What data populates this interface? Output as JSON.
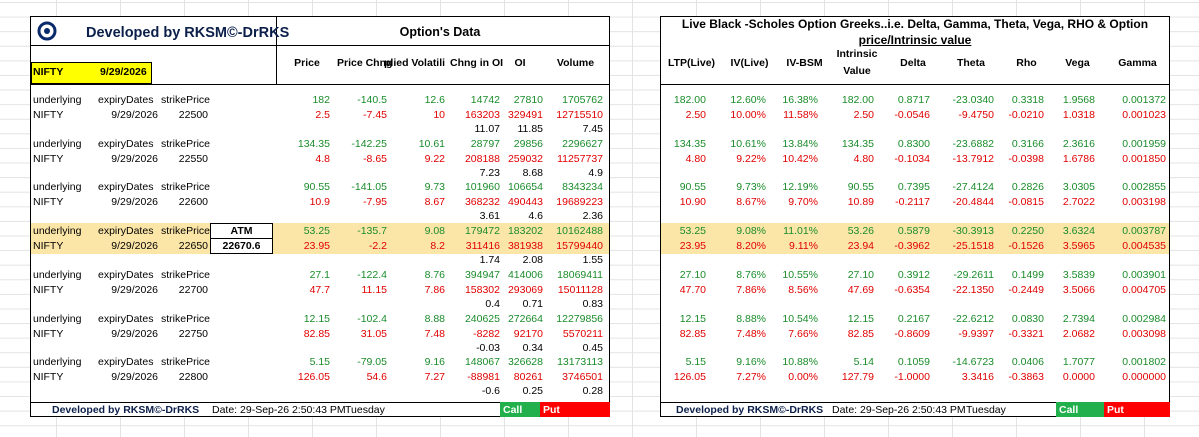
{
  "title": "Developed by RKSM©-DrRKS",
  "options_title": "Option's Data",
  "greeks_title_line1": "Live Black -Scholes Option Greeks..i.e. Delta, Gamma, Theta, Vega, RHO & Option",
  "greeks_title_line2": "price/Intrinsic value",
  "symbol": "NIFTY",
  "expiry": "9/29/2026",
  "left_headers": [
    "Price",
    "Price Chng",
    "plied Volatili",
    "Chng in OI",
    "OI",
    "Volume"
  ],
  "right_headers": [
    "LTP(Live)",
    "IV(Live)",
    "IV-BSM",
    "Intrinsic",
    "Value",
    "Delta",
    "Theta",
    "Rho",
    "Vega",
    "Gamma"
  ],
  "row_labels": {
    "underlying": "underlying",
    "expiryDates": "expiryDates",
    "strikePrice": "strikePrice"
  },
  "atm": {
    "label": "ATM",
    "value": "22670.6"
  },
  "blocks": [
    {
      "expiry": "9/29/2026",
      "strike": "22500",
      "call": {
        "price": "182",
        "chng": "-140.5",
        "iv": "12.6",
        "coi": "14742",
        "oi": "27810",
        "vol": "1705762"
      },
      "put": {
        "price": "2.5",
        "chng": "-7.45",
        "iv": "10",
        "coi": "163203",
        "oi": "329491",
        "vol": "12715510"
      },
      "ratio": {
        "coi": "11.07",
        "oi": "11.85",
        "vol": "7.45"
      },
      "g_call": {
        "ltp": "182.00",
        "iv": "12.60%",
        "bsm": "16.38%",
        "intr": "182.00",
        "delta": "0.8717",
        "theta": "-23.0340",
        "rho": "0.3318",
        "vega": "1.9568",
        "gamma": "0.001372"
      },
      "g_put": {
        "ltp": "2.50",
        "iv": "10.00%",
        "bsm": "11.58%",
        "intr": "2.50",
        "delta": "-0.0546",
        "theta": "-9.4750",
        "rho": "-0.0210",
        "vega": "1.0318",
        "gamma": "0.001023"
      }
    },
    {
      "expiry": "9/29/2026",
      "strike": "22550",
      "call": {
        "price": "134.35",
        "chng": "-142.25",
        "iv": "10.61",
        "coi": "28797",
        "oi": "29856",
        "vol": "2296627"
      },
      "put": {
        "price": "4.8",
        "chng": "-8.65",
        "iv": "9.22",
        "coi": "208188",
        "oi": "259032",
        "vol": "11257737"
      },
      "ratio": {
        "coi": "7.23",
        "oi": "8.68",
        "vol": "4.9"
      },
      "g_call": {
        "ltp": "134.35",
        "iv": "10.61%",
        "bsm": "13.84%",
        "intr": "134.35",
        "delta": "0.8300",
        "theta": "-23.6882",
        "rho": "0.3166",
        "vega": "2.3616",
        "gamma": "0.001959"
      },
      "g_put": {
        "ltp": "4.80",
        "iv": "9.22%",
        "bsm": "10.42%",
        "intr": "4.80",
        "delta": "-0.1034",
        "theta": "-13.7912",
        "rho": "-0.0398",
        "vega": "1.6786",
        "gamma": "0.001850"
      }
    },
    {
      "expiry": "9/29/2026",
      "strike": "22600",
      "call": {
        "price": "90.55",
        "chng": "-141.05",
        "iv": "9.73",
        "coi": "101960",
        "oi": "106654",
        "vol": "8343234"
      },
      "put": {
        "price": "10.9",
        "chng": "-7.95",
        "iv": "8.67",
        "coi": "368232",
        "oi": "490443",
        "vol": "19689223"
      },
      "ratio": {
        "coi": "3.61",
        "oi": "4.6",
        "vol": "2.36"
      },
      "g_call": {
        "ltp": "90.55",
        "iv": "9.73%",
        "bsm": "12.19%",
        "intr": "90.55",
        "delta": "0.7395",
        "theta": "-27.4124",
        "rho": "0.2826",
        "vega": "3.0305",
        "gamma": "0.002855"
      },
      "g_put": {
        "ltp": "10.90",
        "iv": "8.67%",
        "bsm": "9.70%",
        "intr": "10.89",
        "delta": "-0.2117",
        "theta": "-20.4844",
        "rho": "-0.0815",
        "vega": "2.7022",
        "gamma": "0.003198"
      }
    },
    {
      "expiry": "9/29/2026",
      "strike": "22650",
      "call": {
        "price": "53.25",
        "chng": "-135.7",
        "iv": "9.08",
        "coi": "179472",
        "oi": "183202",
        "vol": "10162488"
      },
      "put": {
        "price": "23.95",
        "chng": "-2.2",
        "iv": "8.2",
        "coi": "311416",
        "oi": "381938",
        "vol": "15799440"
      },
      "ratio": {
        "coi": "1.74",
        "oi": "2.08",
        "vol": "1.55"
      },
      "g_call": {
        "ltp": "53.25",
        "iv": "9.08%",
        "bsm": "11.01%",
        "intr": "53.26",
        "delta": "0.5879",
        "theta": "-30.3913",
        "rho": "0.2250",
        "vega": "3.6324",
        "gamma": "0.003787"
      },
      "g_put": {
        "ltp": "23.95",
        "iv": "8.20%",
        "bsm": "9.11%",
        "intr": "23.94",
        "delta": "-0.3962",
        "theta": "-25.1518",
        "rho": "-0.1526",
        "vega": "3.5965",
        "gamma": "0.004535"
      }
    },
    {
      "expiry": "9/29/2026",
      "strike": "22700",
      "call": {
        "price": "27.1",
        "chng": "-122.4",
        "iv": "8.76",
        "coi": "394947",
        "oi": "414006",
        "vol": "18069411"
      },
      "put": {
        "price": "47.7",
        "chng": "11.15",
        "iv": "7.86",
        "coi": "158302",
        "oi": "293069",
        "vol": "15011128"
      },
      "ratio": {
        "coi": "0.4",
        "oi": "0.71",
        "vol": "0.83"
      },
      "g_call": {
        "ltp": "27.10",
        "iv": "8.76%",
        "bsm": "10.55%",
        "intr": "27.10",
        "delta": "0.3912",
        "theta": "-29.2611",
        "rho": "0.1499",
        "vega": "3.5839",
        "gamma": "0.003901"
      },
      "g_put": {
        "ltp": "47.70",
        "iv": "7.86%",
        "bsm": "8.56%",
        "intr": "47.69",
        "delta": "-0.6354",
        "theta": "-22.1350",
        "rho": "-0.2449",
        "vega": "3.5066",
        "gamma": "0.004705"
      }
    },
    {
      "expiry": "9/29/2026",
      "strike": "22750",
      "call": {
        "price": "12.15",
        "chng": "-102.4",
        "iv": "8.88",
        "coi": "240625",
        "oi": "272664",
        "vol": "12279856"
      },
      "put": {
        "price": "82.85",
        "chng": "31.05",
        "iv": "7.48",
        "coi": "-8282",
        "oi": "92170",
        "vol": "5570211"
      },
      "ratio": {
        "coi": "-0.03",
        "oi": "0.34",
        "vol": "0.45"
      },
      "g_call": {
        "ltp": "12.15",
        "iv": "8.88%",
        "bsm": "10.54%",
        "intr": "12.15",
        "delta": "0.2167",
        "theta": "-22.6212",
        "rho": "0.0830",
        "vega": "2.7394",
        "gamma": "0.002984"
      },
      "g_put": {
        "ltp": "82.85",
        "iv": "7.48%",
        "bsm": "7.66%",
        "intr": "82.85",
        "delta": "-0.8609",
        "theta": "-9.9397",
        "rho": "-0.3321",
        "vega": "2.0682",
        "gamma": "0.003098"
      }
    },
    {
      "expiry": "9/29/2026",
      "strike": "22800",
      "call": {
        "price": "5.15",
        "chng": "-79.05",
        "iv": "9.16",
        "coi": "148067",
        "oi": "326628",
        "vol": "13173113"
      },
      "put": {
        "price": "126.05",
        "chng": "54.6",
        "iv": "7.27",
        "coi": "-88981",
        "oi": "80261",
        "vol": "3746501"
      },
      "ratio": {
        "coi": "-0.6",
        "oi": "0.25",
        "vol": "0.28"
      },
      "g_call": {
        "ltp": "5.15",
        "iv": "9.16%",
        "bsm": "10.88%",
        "intr": "5.14",
        "delta": "0.1059",
        "theta": "-14.6723",
        "rho": "0.0406",
        "vega": "1.7077",
        "gamma": "0.001802"
      },
      "g_put": {
        "ltp": "126.05",
        "iv": "7.27%",
        "bsm": "0.00%",
        "intr": "127.79",
        "delta": "-1.0000",
        "theta": "3.3416",
        "rho": "-0.3863",
        "vega": "0.0000",
        "gamma": "0.000000"
      }
    }
  ],
  "footer": {
    "dev": "Developed by RKSM©-DrRKS",
    "date": "Date: 29-Sep-26 2:50:43 PM",
    "day": "Tuesday",
    "call": "Call",
    "put": "Put"
  },
  "colors": {
    "green": "#1a8c2a",
    "red": "#e00000",
    "call_bg": "#21b04b",
    "put_bg": "#ff0000",
    "atm_band": "#fbe6a8",
    "symbol_bg": "#ffff00"
  }
}
